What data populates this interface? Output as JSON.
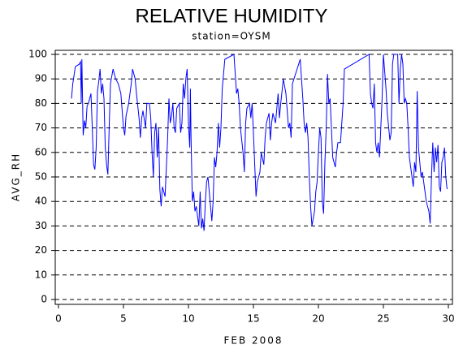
{
  "chart_data": {
    "type": "line",
    "title": "RELATIVE HUMIDITY",
    "subtitle": "station=OYSM",
    "x_label": "FEB 2008",
    "y_label": "AVG_RH",
    "xlim": [
      0,
      30
    ],
    "xticks": [
      0,
      5,
      10,
      15,
      20,
      25,
      30
    ],
    "ylim": [
      0,
      100
    ],
    "yticks": [
      0,
      10,
      20,
      30,
      40,
      50,
      60,
      70,
      80,
      90,
      100
    ],
    "grid": true,
    "series": [
      {
        "color": "#0000ff",
        "x": [
          1.0,
          1.1,
          1.3,
          1.6,
          1.7,
          1.75,
          1.8,
          1.9,
          2.0,
          2.1,
          2.2,
          2.3,
          2.4,
          2.5,
          2.6,
          2.7,
          2.8,
          2.9,
          3.0,
          3.1,
          3.2,
          3.3,
          3.4,
          3.5,
          3.6,
          3.7,
          3.8,
          3.9,
          4.0,
          4.2,
          4.4,
          4.6,
          4.8,
          5.0,
          5.1,
          5.2,
          5.4,
          5.6,
          5.7,
          5.9,
          6.0,
          6.2,
          6.3,
          6.4,
          6.5,
          6.7,
          6.8,
          7.0,
          7.1,
          7.2,
          7.3,
          7.4,
          7.5,
          7.6,
          7.7,
          7.8,
          7.9,
          8.0,
          8.1,
          8.2,
          8.4,
          8.5,
          8.6,
          8.7,
          8.8,
          8.9,
          9.0,
          9.1,
          9.3,
          9.4,
          9.5,
          9.6,
          9.7,
          9.8,
          9.9,
          10.0,
          10.1,
          10.15,
          10.2,
          10.3,
          10.4,
          10.5,
          10.6,
          10.7,
          10.8,
          10.9,
          11.0,
          11.1,
          11.2,
          11.3,
          11.4,
          11.5,
          11.6,
          11.7,
          11.8,
          11.9,
          12.0,
          12.1,
          12.2,
          12.3,
          12.4,
          12.5,
          12.6,
          12.7,
          12.8,
          13.5,
          13.6,
          13.7,
          13.8,
          13.9,
          14.0,
          14.2,
          14.3,
          14.4,
          14.5,
          14.7,
          14.8,
          14.9,
          15.0,
          15.1,
          15.2,
          15.3,
          15.5,
          15.6,
          15.8,
          15.9,
          16.0,
          16.2,
          16.3,
          16.4,
          16.5,
          16.7,
          16.9,
          17.0,
          17.1,
          17.3,
          17.5,
          17.7,
          17.8,
          17.9,
          18.0,
          18.6,
          18.7,
          18.8,
          18.9,
          19.0,
          19.1,
          19.2,
          19.3,
          19.4,
          19.5,
          19.7,
          19.8,
          19.9,
          20.0,
          20.1,
          20.2,
          20.3,
          20.4,
          20.5,
          20.6,
          20.7,
          20.8,
          20.9,
          21.0,
          21.1,
          21.2,
          21.3,
          21.4,
          21.5,
          21.7,
          21.9,
          22.0,
          23.9,
          24.0,
          24.1,
          24.2,
          24.3,
          24.4,
          24.5,
          24.6,
          24.7,
          24.8,
          24.9,
          25.0,
          25.2,
          25.3,
          25.5,
          25.6,
          25.7,
          25.8,
          26.1,
          26.2,
          26.3,
          26.4,
          26.5,
          26.6,
          26.7,
          26.8,
          26.9,
          27.0,
          27.2,
          27.3,
          27.4,
          27.5,
          27.6,
          27.7,
          27.8,
          27.9,
          28.0,
          28.2,
          28.3,
          28.5,
          28.6,
          28.7,
          28.8,
          28.9,
          29.0,
          29.1,
          29.2,
          29.3,
          29.4,
          29.5,
          29.6,
          29.7,
          29.8,
          29.9
        ],
        "values": [
          82,
          88,
          95,
          96,
          97,
          80,
          98,
          67,
          73,
          70,
          79,
          80,
          82,
          84,
          70,
          55,
          53,
          62,
          85,
          89,
          94,
          84,
          88,
          82,
          62,
          55,
          51,
          70,
          88,
          94,
          90,
          88,
          84,
          70,
          67,
          75,
          80,
          88,
          94,
          90,
          84,
          74,
          66,
          74,
          77,
          70,
          80,
          80,
          74,
          60,
          50,
          68,
          72,
          58,
          70,
          45,
          38,
          46,
          44,
          42,
          66,
          82,
          72,
          75,
          80,
          70,
          68,
          78,
          80,
          68,
          72,
          88,
          82,
          90,
          94,
          72,
          62,
          86,
          66,
          40,
          44,
          36,
          38,
          34,
          30,
          44,
          29,
          33,
          28,
          40,
          48,
          50,
          44,
          38,
          32,
          40,
          58,
          54,
          60,
          72,
          62,
          70,
          86,
          92,
          98,
          100,
          92,
          84,
          86,
          80,
          70,
          60,
          52,
          72,
          78,
          80,
          74,
          80,
          68,
          55,
          42,
          48,
          52,
          60,
          55,
          66,
          72,
          76,
          65,
          72,
          76,
          72,
          84,
          74,
          80,
          90,
          84,
          70,
          72,
          66,
          88,
          98,
          90,
          82,
          72,
          68,
          72,
          66,
          50,
          38,
          30,
          36,
          44,
          48,
          60,
          70,
          66,
          40,
          35,
          56,
          70,
          92,
          80,
          82,
          70,
          58,
          56,
          54,
          60,
          64,
          64,
          80,
          94,
          100,
          84,
          80,
          78,
          88,
          64,
          60,
          64,
          58,
          70,
          82,
          100,
          86,
          76,
          65,
          68,
          96,
          100,
          100,
          80,
          94,
          100,
          96,
          80,
          82,
          80,
          70,
          58,
          50,
          46,
          56,
          52,
          85,
          62,
          56,
          50,
          52,
          44,
          40,
          36,
          31,
          50,
          64,
          52,
          62,
          56,
          63,
          46,
          44,
          56,
          58,
          62,
          50,
          45
        ]
      }
    ]
  }
}
